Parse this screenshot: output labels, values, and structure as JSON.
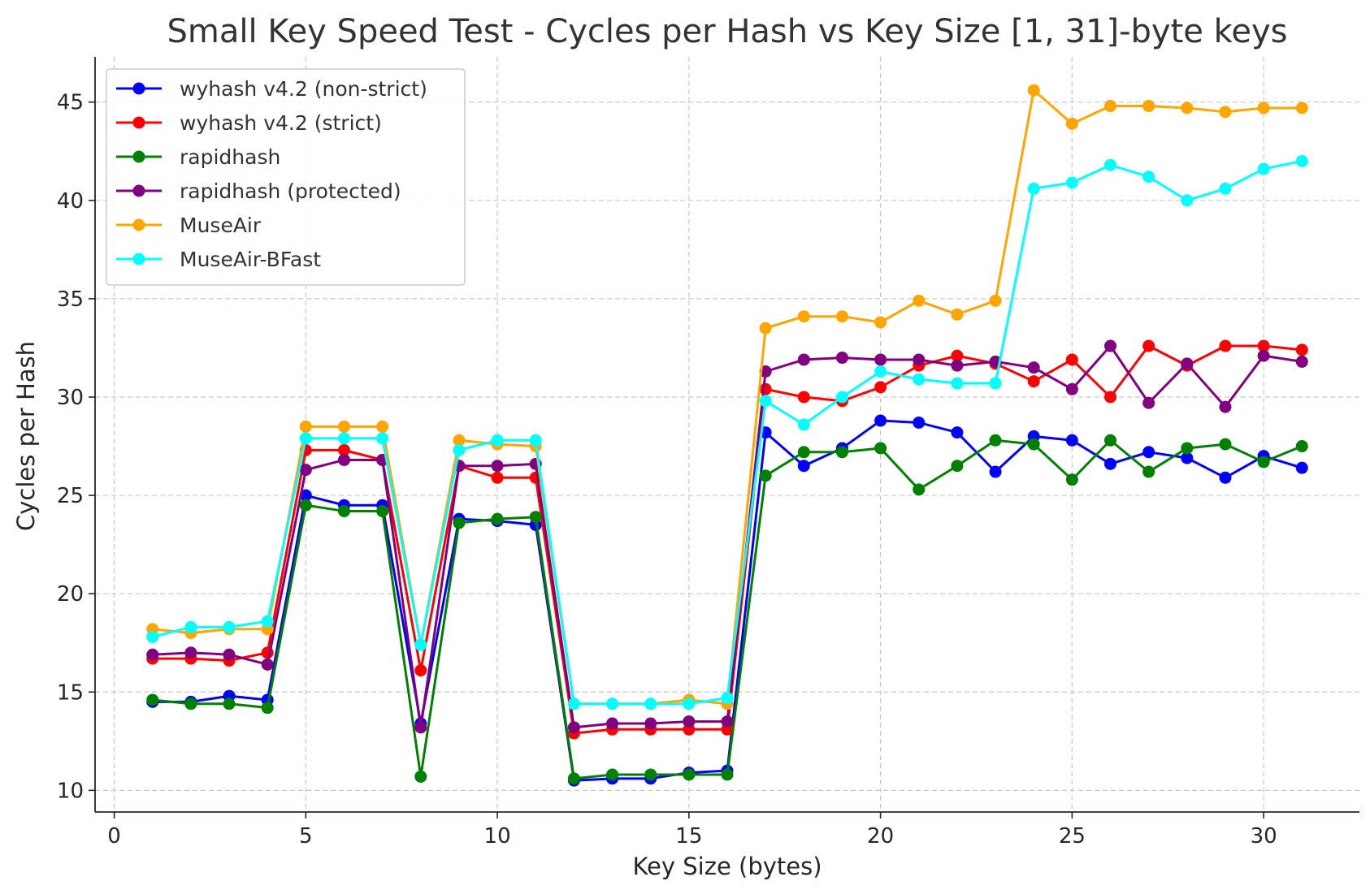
{
  "chart_data": {
    "type": "line",
    "title": "Small Key Speed Test - Cycles per Hash vs Key Size [1, 31]-byte keys",
    "xlabel": "Key Size (bytes)",
    "ylabel": "Cycles per Hash",
    "xlim": [
      -0.5,
      32.5
    ],
    "ylim": [
      8.9,
      47.3
    ],
    "xticks": [
      0,
      5,
      10,
      15,
      20,
      25,
      30
    ],
    "yticks": [
      10,
      15,
      20,
      25,
      30,
      35,
      40,
      45
    ],
    "grid": true,
    "legend_position": "top-left",
    "x": [
      1,
      2,
      3,
      4,
      5,
      6,
      7,
      8,
      9,
      10,
      11,
      12,
      13,
      14,
      15,
      16,
      17,
      18,
      19,
      20,
      21,
      22,
      23,
      24,
      25,
      26,
      27,
      28,
      29,
      30,
      31
    ],
    "series": [
      {
        "name": "wyhash v4.2 (non-strict)",
        "color": "#0000ff",
        "values": [
          14.5,
          14.5,
          14.8,
          14.6,
          25.0,
          24.5,
          24.5,
          13.4,
          23.8,
          23.7,
          23.5,
          10.5,
          10.6,
          10.6,
          10.9,
          11.0,
          28.2,
          26.5,
          27.4,
          28.8,
          28.7,
          28.2,
          26.2,
          28.0,
          27.8,
          26.6,
          27.2,
          26.9,
          25.9,
          27.0,
          26.4
        ]
      },
      {
        "name": "wyhash v4.2 (strict)",
        "color": "#ff0000",
        "values": [
          16.7,
          16.7,
          16.6,
          17.0,
          27.3,
          27.3,
          26.8,
          16.1,
          26.5,
          25.9,
          25.9,
          12.9,
          13.1,
          13.1,
          13.1,
          13.1,
          30.4,
          30.0,
          29.8,
          30.5,
          31.6,
          32.1,
          31.7,
          30.8,
          31.9,
          30.0,
          32.6,
          31.6,
          32.6,
          32.6,
          32.4
        ]
      },
      {
        "name": "rapidhash",
        "color": "#008000",
        "values": [
          14.6,
          14.4,
          14.4,
          14.2,
          24.5,
          24.2,
          24.2,
          10.7,
          23.6,
          23.8,
          23.9,
          10.6,
          10.8,
          10.8,
          10.8,
          10.8,
          26.0,
          27.2,
          27.2,
          27.4,
          25.3,
          26.5,
          27.8,
          27.6,
          25.8,
          27.8,
          26.2,
          27.4,
          27.6,
          26.7,
          27.5
        ]
      },
      {
        "name": "rapidhash (protected)",
        "color": "#800080",
        "values": [
          16.9,
          17.0,
          16.9,
          16.4,
          26.3,
          26.8,
          26.8,
          13.2,
          26.5,
          26.5,
          26.6,
          13.2,
          13.4,
          13.4,
          13.5,
          13.5,
          31.3,
          31.9,
          32.0,
          31.9,
          31.9,
          31.6,
          31.8,
          31.5,
          30.4,
          32.6,
          29.7,
          31.7,
          29.5,
          32.1,
          31.8
        ]
      },
      {
        "name": "MuseAir",
        "color": "#ffa500",
        "values": [
          18.2,
          18.0,
          18.2,
          18.2,
          28.5,
          28.5,
          28.5,
          17.4,
          27.8,
          27.6,
          27.5,
          14.4,
          14.4,
          14.4,
          14.6,
          14.4,
          33.5,
          34.1,
          34.1,
          33.8,
          34.9,
          34.2,
          34.9,
          45.6,
          43.9,
          44.8,
          44.8,
          44.7,
          44.5,
          44.7,
          44.7
        ]
      },
      {
        "name": "MuseAir-BFast",
        "color": "#00ffff",
        "values": [
          17.8,
          18.3,
          18.3,
          18.6,
          27.9,
          27.9,
          27.9,
          17.4,
          27.3,
          27.8,
          27.8,
          14.4,
          14.4,
          14.4,
          14.4,
          14.7,
          29.8,
          28.6,
          30.0,
          31.3,
          30.9,
          30.7,
          30.7,
          40.6,
          40.9,
          41.8,
          41.2,
          40.0,
          40.6,
          41.6,
          42.0
        ]
      }
    ]
  }
}
